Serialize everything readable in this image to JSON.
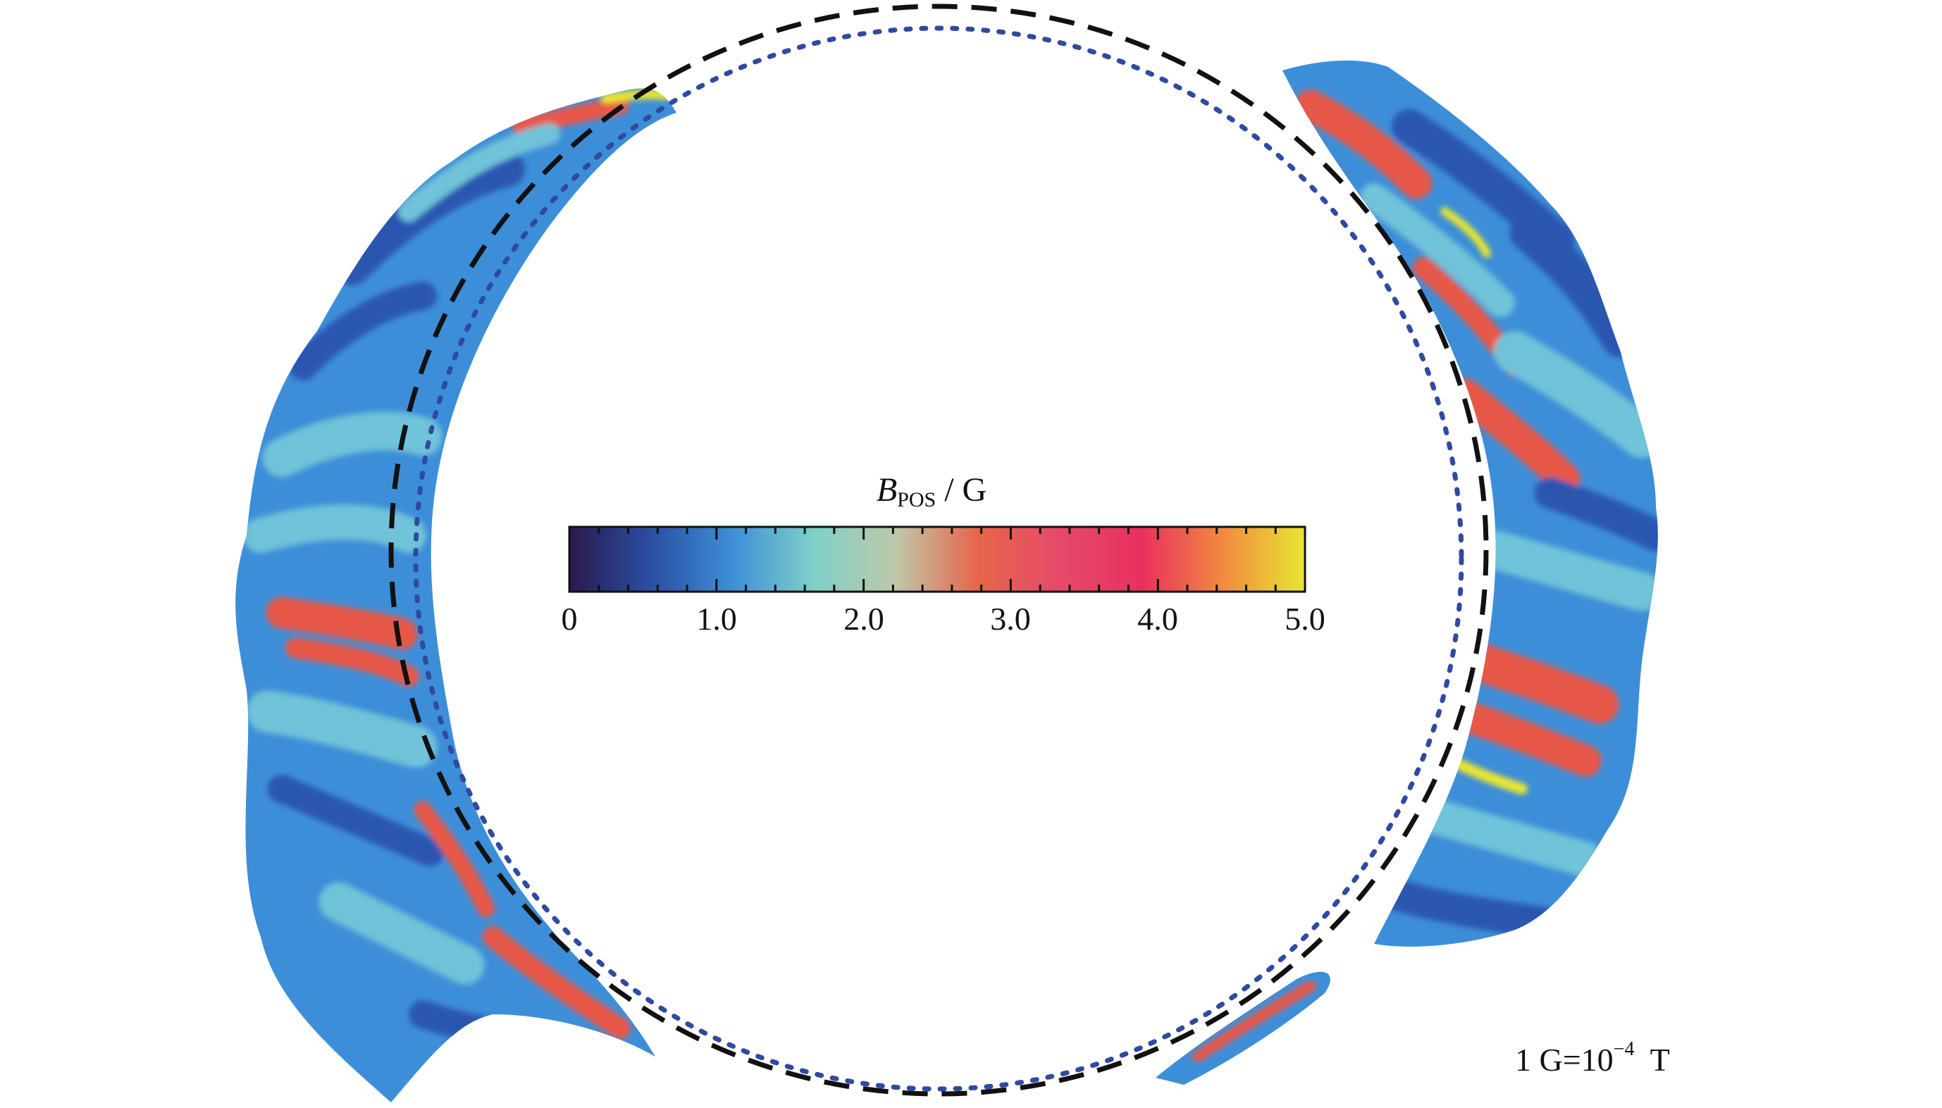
{
  "colorbar": {
    "title_symbol": "B",
    "title_subscript": "POS",
    "title_unit": " / G",
    "ticks": [
      "0",
      "1.0",
      "2.0",
      "3.0",
      "4.0",
      "5.0"
    ],
    "range": [
      0,
      5.0
    ],
    "stops": [
      "#2a1a4e",
      "#2b4fa3",
      "#3d8fd6",
      "#7fd0c8",
      "#bfc7a8",
      "#e7654a",
      "#e54a6a",
      "#e8305e",
      "#f28a3f",
      "#e7e632"
    ]
  },
  "unit_note": {
    "prefix": "1 G=10",
    "exponent": "−4",
    "suffix": "  T"
  },
  "colors": {
    "blue_dark": "#2b56b0",
    "blue": "#3d8ed8",
    "cyan": "#6fc3d8",
    "red": "#e8584a",
    "yellow": "#e8e632",
    "dashed_circle": "#111111",
    "dotted_circle": "#2f4aa0"
  }
}
